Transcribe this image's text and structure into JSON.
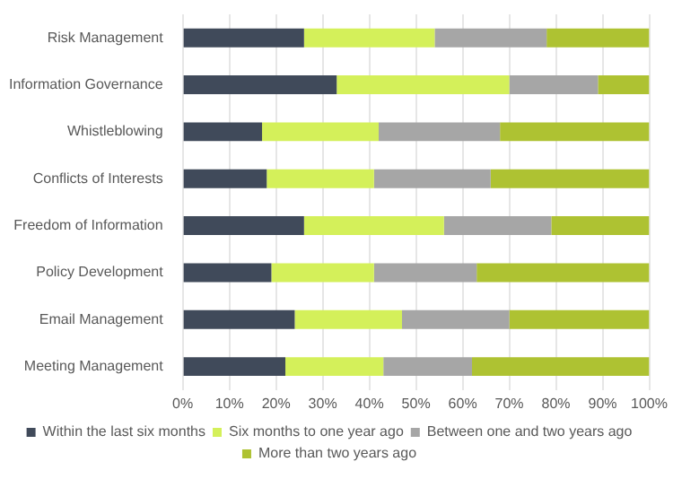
{
  "chart_data": {
    "type": "bar",
    "orientation": "horizontal",
    "stacked": true,
    "categories": [
      "Risk Management",
      "Information Governance",
      "Whistleblowing",
      "Conflicts of Interests",
      "Freedom of Information",
      "Policy Development",
      "Email Management",
      "Meeting Management"
    ],
    "series": [
      {
        "name": "Within the last six months",
        "color": "#404a5a",
        "values": [
          26,
          33,
          17,
          18,
          26,
          19,
          24,
          22
        ]
      },
      {
        "name": "Six months to one year ago",
        "color": "#d4f05a",
        "values": [
          28,
          37,
          25,
          23,
          30,
          22,
          23,
          21
        ]
      },
      {
        "name": "Between one and two years ago",
        "color": "#a6a6a6",
        "values": [
          24,
          19,
          26,
          25,
          23,
          22,
          23,
          19
        ]
      },
      {
        "name": "More than two years ago",
        "color": "#aec232",
        "values": [
          22,
          11,
          32,
          34,
          21,
          37,
          30,
          38
        ]
      }
    ],
    "xlim": [
      0,
      100
    ],
    "xticks": [
      {
        "value": 0,
        "label": "0%"
      },
      {
        "value": 10,
        "label": "10%"
      },
      {
        "value": 20,
        "label": "20%"
      },
      {
        "value": 30,
        "label": "30%"
      },
      {
        "value": 40,
        "label": "40%"
      },
      {
        "value": 50,
        "label": "50%"
      },
      {
        "value": 60,
        "label": "60%"
      },
      {
        "value": 70,
        "label": "70%"
      },
      {
        "value": 80,
        "label": "80%"
      },
      {
        "value": 90,
        "label": "90%"
      },
      {
        "value": 100,
        "label": "100%"
      }
    ],
    "grid": "x",
    "legend": "bottom"
  }
}
